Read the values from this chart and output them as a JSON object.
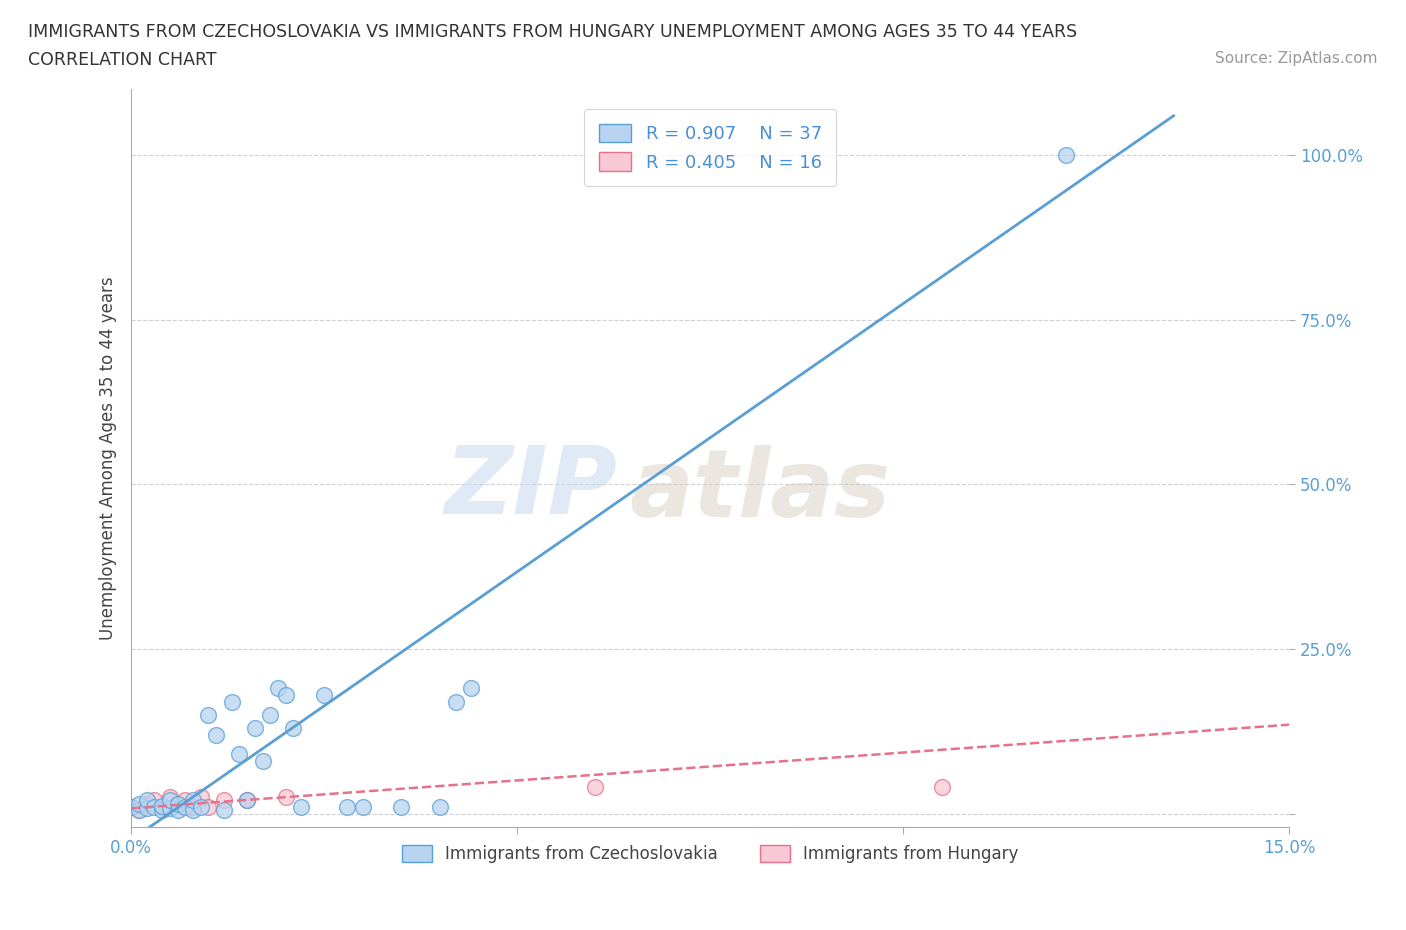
{
  "title_line1": "IMMIGRANTS FROM CZECHOSLOVAKIA VS IMMIGRANTS FROM HUNGARY UNEMPLOYMENT AMONG AGES 35 TO 44 YEARS",
  "title_line2": "CORRELATION CHART",
  "source_text": "Source: ZipAtlas.com",
  "ylabel": "Unemployment Among Ages 35 to 44 years",
  "xlim": [
    0.0,
    0.15
  ],
  "ylim": [
    -0.02,
    1.1
  ],
  "x_ticks": [
    0.0,
    0.05,
    0.1,
    0.15
  ],
  "x_tick_labels": [
    "0.0%",
    "",
    "",
    "15.0%"
  ],
  "y_ticks": [
    0.0,
    0.25,
    0.5,
    0.75,
    1.0
  ],
  "y_tick_labels": [
    "",
    "25.0%",
    "50.0%",
    "75.0%",
    "100.0%"
  ],
  "watermark_zip": "ZIP",
  "watermark_atlas": "atlas",
  "legend_r1_val": "0.907",
  "legend_n1_val": "37",
  "legend_r2_val": "0.405",
  "legend_n2_val": "16",
  "color_blue_fill": "#b8d4f0",
  "color_blue_edge": "#5a9fd4",
  "color_blue_line": "#5a9fd4",
  "color_pink_fill": "#f8c8d4",
  "color_pink_edge": "#e8708a",
  "color_pink_line": "#e8708a",
  "background_color": "#ffffff",
  "grid_color": "#cccccc",
  "blue_scatter_x": [
    0.0,
    0.001,
    0.001,
    0.002,
    0.002,
    0.003,
    0.004,
    0.004,
    0.005,
    0.005,
    0.006,
    0.006,
    0.007,
    0.008,
    0.008,
    0.009,
    0.01,
    0.011,
    0.012,
    0.013,
    0.014,
    0.015,
    0.016,
    0.017,
    0.018,
    0.019,
    0.02,
    0.021,
    0.022,
    0.025,
    0.028,
    0.03,
    0.035,
    0.04,
    0.042,
    0.044,
    0.121
  ],
  "blue_scatter_y": [
    0.01,
    0.005,
    0.015,
    0.008,
    0.02,
    0.01,
    0.005,
    0.012,
    0.008,
    0.02,
    0.005,
    0.015,
    0.01,
    0.005,
    0.02,
    0.01,
    0.15,
    0.12,
    0.005,
    0.17,
    0.09,
    0.02,
    0.13,
    0.08,
    0.15,
    0.19,
    0.18,
    0.13,
    0.01,
    0.18,
    0.01,
    0.01,
    0.01,
    0.01,
    0.17,
    0.19,
    1.0
  ],
  "pink_scatter_x": [
    0.0,
    0.001,
    0.002,
    0.003,
    0.004,
    0.005,
    0.006,
    0.007,
    0.008,
    0.009,
    0.01,
    0.012,
    0.015,
    0.02,
    0.06,
    0.105
  ],
  "pink_scatter_y": [
    0.01,
    0.005,
    0.015,
    0.02,
    0.01,
    0.025,
    0.015,
    0.02,
    0.01,
    0.025,
    0.01,
    0.02,
    0.02,
    0.025,
    0.04,
    0.04
  ],
  "blue_line_x": [
    0.0,
    0.135
  ],
  "blue_line_y": [
    -0.04,
    1.06
  ],
  "pink_line_x": [
    0.0,
    0.15
  ],
  "pink_line_y": [
    0.008,
    0.135
  ],
  "legend_label1": "Immigrants from Czechoslovakia",
  "legend_label2": "Immigrants from Hungary"
}
